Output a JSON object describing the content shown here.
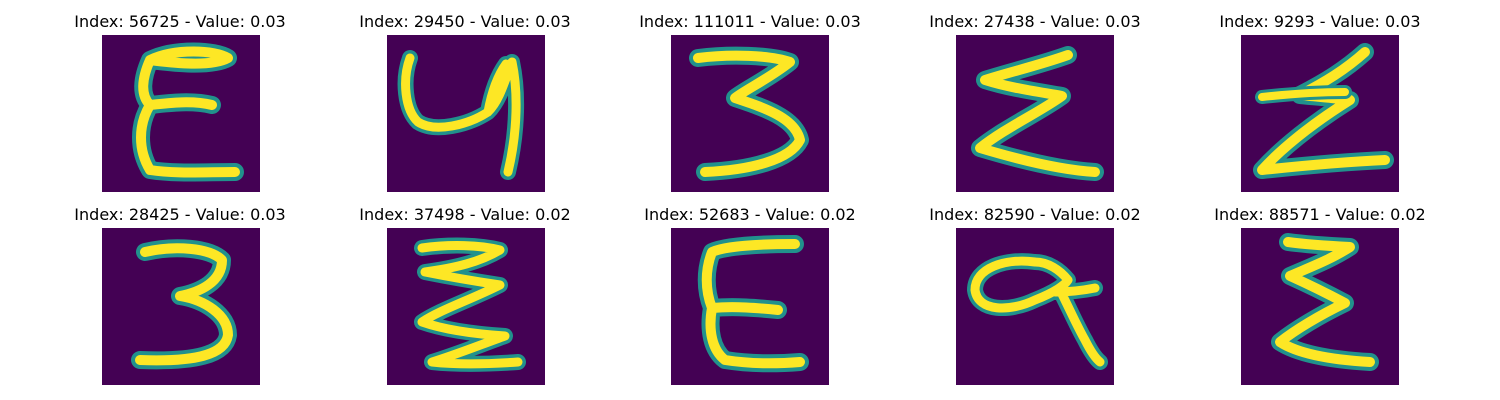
{
  "panels": [
    {
      "title": "Index: 56725 - Value: 0.03"
    },
    {
      "title": "Index: 29450 - Value: 0.03"
    },
    {
      "title": "Index: 111011 - Value: 0.03"
    },
    {
      "title": "Index: 27438 - Value: 0.03"
    },
    {
      "title": "Index: 9293 - Value: 0.03"
    },
    {
      "title": "Index: 28425 - Value: 0.03"
    },
    {
      "title": "Index: 37498 - Value: 0.02"
    },
    {
      "title": "Index: 52683 - Value: 0.02"
    },
    {
      "title": "Index: 82590 - Value: 0.02"
    },
    {
      "title": "Index: 88571 - Value: 0.02"
    }
  ],
  "colors": {
    "background": "#440154",
    "edge": "#21918c",
    "stroke": "#fde725"
  }
}
